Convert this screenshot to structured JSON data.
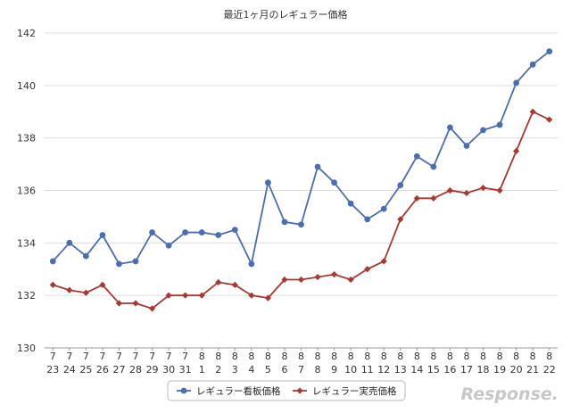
{
  "chart_data": {
    "type": "line",
    "title": "最近1ヶ月のレギュラー価格",
    "xlabel": "",
    "ylabel": "",
    "ylim": [
      130,
      142
    ],
    "y_ticks": [
      "130",
      "132",
      "134",
      "136",
      "138",
      "140",
      "142"
    ],
    "grid": true,
    "legend_position": "bottom-center",
    "categories": [
      [
        "7",
        "23"
      ],
      [
        "7",
        "24"
      ],
      [
        "7",
        "25"
      ],
      [
        "7",
        "26"
      ],
      [
        "7",
        "27"
      ],
      [
        "7",
        "28"
      ],
      [
        "7",
        "29"
      ],
      [
        "7",
        "30"
      ],
      [
        "7",
        "31"
      ],
      [
        "8",
        "1"
      ],
      [
        "8",
        "2"
      ],
      [
        "8",
        "3"
      ],
      [
        "8",
        "4"
      ],
      [
        "8",
        "5"
      ],
      [
        "8",
        "6"
      ],
      [
        "8",
        "7"
      ],
      [
        "8",
        "8"
      ],
      [
        "8",
        "9"
      ],
      [
        "8",
        "10"
      ],
      [
        "8",
        "11"
      ],
      [
        "8",
        "12"
      ],
      [
        "8",
        "13"
      ],
      [
        "8",
        "14"
      ],
      [
        "8",
        "15"
      ],
      [
        "8",
        "16"
      ],
      [
        "8",
        "17"
      ],
      [
        "8",
        "18"
      ],
      [
        "8",
        "19"
      ],
      [
        "8",
        "20"
      ],
      [
        "8",
        "21"
      ],
      [
        "8",
        "22"
      ]
    ],
    "series": [
      {
        "name": "レギュラー看板価格",
        "color": "#4a6eb0",
        "marker": "circle",
        "values": [
          133.3,
          134.0,
          133.5,
          134.3,
          133.2,
          133.3,
          134.4,
          133.9,
          134.4,
          134.4,
          134.3,
          134.5,
          133.2,
          136.3,
          134.8,
          134.7,
          136.9,
          136.3,
          135.5,
          134.9,
          135.3,
          136.2,
          137.3,
          136.9,
          138.4,
          137.7,
          138.3,
          138.5,
          140.1,
          140.8,
          141.3
        ]
      },
      {
        "name": "レギュラー実売価格",
        "color": "#a8392f",
        "marker": "diamond",
        "values": [
          132.4,
          132.2,
          132.1,
          132.4,
          131.7,
          131.7,
          131.5,
          132.0,
          132.0,
          132.0,
          132.5,
          132.4,
          132.0,
          131.9,
          132.6,
          132.6,
          132.7,
          132.8,
          132.6,
          133.0,
          133.3,
          134.9,
          135.7,
          135.7,
          136.0,
          135.9,
          136.1,
          136.0,
          137.5,
          139.0,
          138.7
        ]
      }
    ]
  },
  "watermark": "Response."
}
